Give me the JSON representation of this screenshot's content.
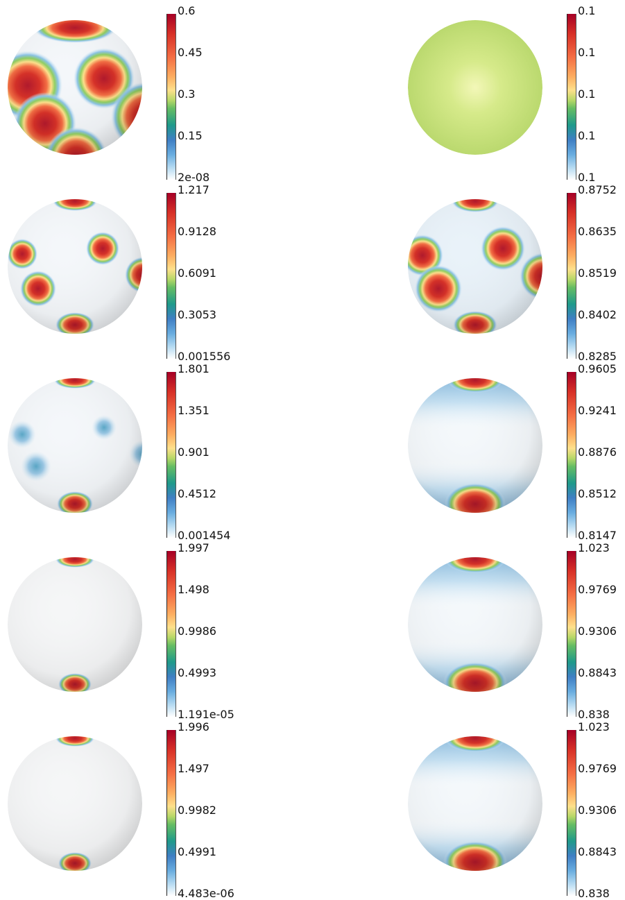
{
  "panels": [
    {
      "ticks": [
        "0.6",
        "0.45",
        "0.3",
        "0.15",
        "2e-08"
      ]
    },
    {
      "ticks": [
        "0.1",
        "0.1",
        "0.1",
        "0.1",
        "0.1"
      ]
    },
    {
      "ticks": [
        "1.217",
        "0.9128",
        "0.6091",
        "0.3053",
        "0.001556"
      ]
    },
    {
      "ticks": [
        "0.8752",
        "0.8635",
        "0.8519",
        "0.8402",
        "0.8285"
      ]
    },
    {
      "ticks": [
        "1.801",
        "1.351",
        "0.901",
        "0.4512",
        "0.001454"
      ]
    },
    {
      "ticks": [
        "0.9605",
        "0.9241",
        "0.8876",
        "0.8512",
        "0.8147"
      ]
    },
    {
      "ticks": [
        "1.997",
        "1.498",
        "0.9986",
        "0.4993",
        "1.191e-05"
      ]
    },
    {
      "ticks": [
        "1.023",
        "0.9769",
        "0.9306",
        "0.8843",
        "0.838"
      ]
    },
    {
      "ticks": [
        "1.996",
        "1.497",
        "0.9982",
        "0.4991",
        "4.483e-06"
      ]
    },
    {
      "ticks": [
        "1.023",
        "0.9769",
        "0.9306",
        "0.8843",
        "0.838"
      ]
    }
  ],
  "colormap": [
    "#ffffff",
    "#b8dcf2",
    "#6aaee0",
    "#3f7fc4",
    "#1f9a8a",
    "#66bd63",
    "#b8d868",
    "#fee08b",
    "#fdae61",
    "#f46d43",
    "#d73027",
    "#a50026"
  ]
}
